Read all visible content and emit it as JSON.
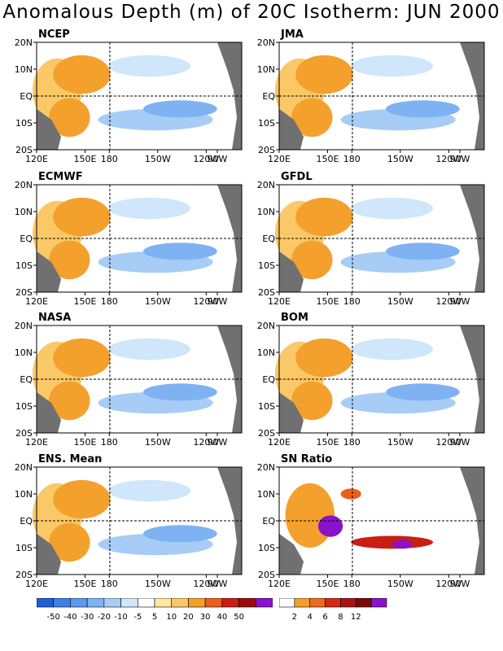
{
  "title": "Anomalous Depth (m) of 20C Isotherm: JUN 2000",
  "axes": {
    "lat_ticks": [
      "20N",
      "10N",
      "EQ",
      "10S",
      "20S"
    ],
    "lon_ticks": [
      "120E",
      "150E",
      "180",
      "150W",
      "120W",
      "90W"
    ]
  },
  "panels": [
    {
      "name": "NCEP"
    },
    {
      "name": "JMA"
    },
    {
      "name": "ECMWF"
    },
    {
      "name": "GFDL"
    },
    {
      "name": "NASA"
    },
    {
      "name": "BOM"
    },
    {
      "name": "ENS. Mean"
    },
    {
      "name": "SN Ratio"
    }
  ],
  "colorbar_depth": {
    "labels": [
      "-50",
      "-40",
      "-30",
      "-20",
      "-10",
      "-5",
      "5",
      "10",
      "20",
      "30",
      "40",
      "50"
    ],
    "colors": [
      "#1e5fd6",
      "#3d7fe6",
      "#5c98ee",
      "#7fb2f2",
      "#a7cdf6",
      "#cfe6fb",
      "#ffffff",
      "#fde9a0",
      "#fbc868",
      "#f4a02d",
      "#e8601c",
      "#c81e14",
      "#9a0d0d",
      "#8a12c8"
    ]
  },
  "colorbar_sn": {
    "labels": [
      "2",
      "4",
      "6",
      "8",
      "12"
    ],
    "colors": [
      "#ffffff",
      "#f4a02d",
      "#ee6a1c",
      "#d42a14",
      "#a81410",
      "#7a0a0a",
      "#8a12c8"
    ]
  },
  "colors": {
    "land": "#707070",
    "warm_light": "#fbc868",
    "warm": "#f4a02d",
    "warm_strong": "#e8601c",
    "warm_max": "#c81e14",
    "cool_light": "#cfe6fb",
    "cool": "#a7cdf6",
    "cool_strong": "#7fb2f2",
    "sn_purple": "#8a12c8"
  }
}
